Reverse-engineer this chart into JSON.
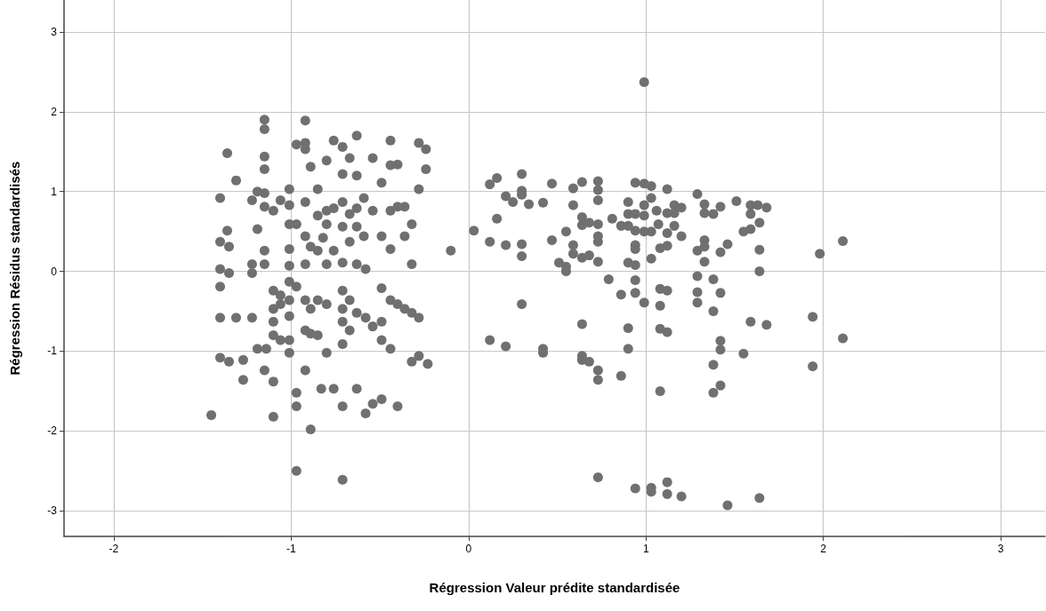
{
  "chart_data": {
    "type": "scatter",
    "xlabel": "Régression Valeur prédite standardisée",
    "ylabel": "Régression Résidus standardisés",
    "xlim": [
      -2.28,
      3.25
    ],
    "ylim": [
      -3.32,
      3.4
    ],
    "xticks": [
      -2,
      -1,
      0,
      1,
      2,
      3
    ],
    "yticks": [
      -3,
      -2,
      -1,
      0,
      1,
      2,
      3
    ],
    "grid": true,
    "marker": "circle",
    "series": [
      {
        "color": "#707070",
        "x": [
          -1.45,
          -1.4,
          -1.4,
          -1.4,
          -1.4,
          -1.4,
          -1.4,
          -1.36,
          -1.36,
          -1.35,
          -1.35,
          -1.35,
          -1.31,
          -1.31,
          -1.27,
          -1.27,
          -1.22,
          -1.22,
          -1.22,
          -1.22,
          -1.19,
          -1.19,
          -1.19,
          -1.15,
          -1.15,
          -1.15,
          -1.15,
          -1.15,
          -1.15,
          -1.15,
          -1.15,
          -1.15,
          -1.14,
          -1.1,
          -1.1,
          -1.1,
          -1.1,
          -1.1,
          -1.1,
          -1.1,
          -1.06,
          -1.06,
          -1.06,
          -1.06,
          -1.01,
          -1.01,
          -1.01,
          -1.01,
          -1.01,
          -1.01,
          -1.01,
          -1.01,
          -1.01,
          -1.01,
          -0.97,
          -0.97,
          -0.97,
          -0.97,
          -0.97,
          -0.97,
          -0.92,
          -0.92,
          -0.92,
          -0.92,
          -0.92,
          -0.92,
          -0.92,
          -0.92,
          -0.92,
          -0.89,
          -0.89,
          -0.89,
          -0.89,
          -0.89,
          -0.85,
          -0.85,
          -0.85,
          -0.85,
          -0.85,
          -0.83,
          -0.82,
          -0.8,
          -0.8,
          -0.8,
          -0.8,
          -0.8,
          -0.8,
          -0.76,
          -0.76,
          -0.76,
          -0.76,
          -0.71,
          -0.71,
          -0.71,
          -0.71,
          -0.71,
          -0.71,
          -0.71,
          -0.71,
          -0.71,
          -0.71,
          -0.71,
          -0.67,
          -0.67,
          -0.67,
          -0.67,
          -0.67,
          -0.63,
          -0.63,
          -0.63,
          -0.63,
          -0.63,
          -0.63,
          -0.63,
          -0.59,
          -0.59,
          -0.58,
          -0.58,
          -0.58,
          -0.54,
          -0.54,
          -0.54,
          -0.54,
          -0.49,
          -0.49,
          -0.49,
          -0.49,
          -0.49,
          -0.49,
          -0.44,
          -0.44,
          -0.44,
          -0.44,
          -0.44,
          -0.44,
          -0.4,
          -0.4,
          -0.4,
          -0.4,
          -0.36,
          -0.36,
          -0.36,
          -0.32,
          -0.32,
          -0.32,
          -0.32,
          -0.28,
          -0.28,
          -0.28,
          -0.28,
          -0.24,
          -0.24,
          -0.23,
          -0.1,
          0.99,
          0.12,
          0.16,
          0.3,
          0.3,
          0.3,
          0.21,
          0.25,
          0.34,
          0.42,
          0.47,
          0.59,
          0.64,
          0.73,
          0.73,
          0.73,
          0.59,
          0.16,
          0.03,
          0.12,
          0.21,
          0.3,
          0.3,
          0.47,
          0.55,
          0.59,
          0.59,
          0.64,
          0.64,
          0.68,
          0.73,
          0.73,
          0.73,
          0.64,
          0.68,
          0.73,
          0.51,
          0.55,
          0.55,
          0.81,
          0.86,
          0.9,
          0.9,
          0.94,
          0.99,
          1.03,
          1.03,
          0.99,
          0.94,
          0.99,
          0.9,
          0.94,
          0.99,
          1.03,
          1.06,
          1.07,
          1.12,
          1.12,
          1.16,
          1.2,
          1.16,
          1.16,
          1.12,
          1.2,
          0.94,
          0.94,
          0.9,
          0.94,
          1.03,
          1.08,
          1.12,
          0.79,
          0.94,
          0.86,
          0.94,
          0.99,
          1.08,
          1.12,
          1.08,
          1.29,
          1.33,
          1.33,
          1.38,
          1.42,
          1.51,
          1.59,
          1.63,
          1.68,
          1.59,
          1.64,
          1.59,
          1.55,
          1.33,
          1.33,
          1.29,
          1.42,
          1.46,
          1.33,
          1.64,
          1.64,
          1.29,
          1.38,
          1.29,
          1.42,
          1.29,
          1.38,
          1.98,
          2.11,
          0.3,
          1.59,
          1.68,
          1.94,
          1.94,
          2.11,
          0.12,
          0.21,
          0.42,
          0.42,
          0.64,
          0.64,
          0.64,
          0.68,
          0.73,
          0.73,
          0.86,
          0.9,
          0.9,
          1.08,
          1.12,
          1.08,
          1.42,
          1.42,
          1.55,
          1.38,
          1.42,
          1.38,
          0.73,
          0.94,
          1.03,
          1.03,
          1.12,
          1.12,
          1.2,
          1.46,
          1.64
        ],
        "values": [
          -1.8,
          0.92,
          0.37,
          0.03,
          -0.19,
          -0.58,
          -1.08,
          1.48,
          0.51,
          0.31,
          -0.02,
          -1.13,
          1.14,
          -0.58,
          -1.11,
          -1.36,
          -0.58,
          0.09,
          -0.02,
          0.89,
          1.0,
          0.53,
          -0.97,
          1.9,
          1.78,
          1.44,
          1.28,
          0.98,
          0.81,
          0.26,
          0.09,
          -1.24,
          -0.97,
          0.76,
          -0.24,
          -0.47,
          -0.63,
          -0.8,
          -1.38,
          -1.82,
          0.89,
          -0.3,
          -0.41,
          -0.86,
          0.83,
          1.03,
          0.59,
          0.28,
          0.07,
          -0.13,
          -0.36,
          -0.56,
          -0.86,
          -1.02,
          1.59,
          0.59,
          -0.19,
          -1.52,
          -1.69,
          -2.5,
          1.89,
          1.61,
          1.53,
          0.87,
          0.44,
          0.09,
          -0.36,
          -0.74,
          -1.24,
          1.31,
          0.31,
          -1.98,
          -0.47,
          -0.78,
          1.03,
          0.7,
          0.26,
          -0.36,
          -0.8,
          -1.47,
          0.42,
          0.76,
          1.39,
          0.59,
          0.09,
          -0.41,
          -1.02,
          -1.47,
          0.79,
          0.26,
          1.64,
          1.56,
          1.22,
          0.87,
          0.56,
          0.11,
          -0.24,
          -0.47,
          -0.63,
          -0.91,
          -1.69,
          -2.61,
          1.42,
          0.72,
          0.37,
          -0.36,
          -0.74,
          1.7,
          1.2,
          0.79,
          0.56,
          0.09,
          -0.52,
          -1.47,
          0.92,
          0.44,
          0.03,
          -0.58,
          -1.78,
          1.42,
          0.76,
          -0.69,
          -1.66,
          1.11,
          0.44,
          -0.21,
          -0.86,
          -1.6,
          -0.63,
          1.64,
          1.33,
          0.76,
          0.28,
          -0.36,
          -0.97,
          1.34,
          0.81,
          -1.69,
          -0.41,
          0.81,
          0.44,
          -0.47,
          0.59,
          0.09,
          -1.13,
          -0.52,
          1.61,
          1.03,
          -0.58,
          -1.06,
          1.53,
          1.28,
          -1.16,
          0.26,
          2.37,
          1.09,
          1.17,
          1.22,
          1.01,
          0.96,
          0.94,
          0.87,
          0.84,
          0.86,
          1.1,
          1.04,
          1.12,
          1.13,
          1.02,
          0.89,
          0.83,
          0.66,
          0.51,
          0.37,
          0.33,
          0.34,
          0.19,
          0.39,
          0.5,
          0.33,
          0.22,
          0.68,
          0.58,
          0.61,
          0.59,
          0.44,
          0.37,
          0.17,
          0.2,
          0.12,
          0.11,
          0.0,
          0.06,
          0.66,
          0.57,
          0.87,
          0.72,
          1.11,
          1.1,
          1.07,
          0.92,
          0.83,
          0.72,
          0.7,
          0.57,
          0.51,
          0.5,
          0.5,
          0.76,
          0.59,
          1.03,
          0.73,
          0.83,
          0.8,
          0.73,
          0.57,
          0.48,
          0.44,
          0.33,
          0.28,
          0.11,
          0.08,
          0.16,
          0.29,
          0.32,
          -0.1,
          -0.11,
          -0.29,
          -0.27,
          -0.39,
          -0.22,
          -0.24,
          -0.43,
          0.97,
          0.84,
          0.73,
          0.72,
          0.81,
          0.88,
          0.83,
          0.83,
          0.8,
          0.72,
          0.61,
          0.53,
          0.5,
          0.39,
          0.31,
          0.26,
          0.24,
          0.34,
          0.12,
          0.27,
          0.0,
          -0.06,
          -0.1,
          -0.26,
          -0.27,
          -0.39,
          -0.5,
          0.22,
          0.38,
          -0.41,
          -0.63,
          -0.67,
          -0.57,
          -1.19,
          -0.84,
          -0.86,
          -0.94,
          -0.97,
          -1.02,
          -0.66,
          -1.06,
          -1.11,
          -1.13,
          -1.24,
          -1.36,
          -1.31,
          -0.71,
          -0.97,
          -0.72,
          -0.76,
          -1.5,
          -0.87,
          -0.98,
          -1.03,
          -1.17,
          -1.43,
          -1.52,
          -2.58,
          -2.72,
          -2.71,
          -2.76,
          -2.64,
          -2.79,
          -2.82,
          -2.93,
          -2.84
        ]
      }
    ]
  }
}
